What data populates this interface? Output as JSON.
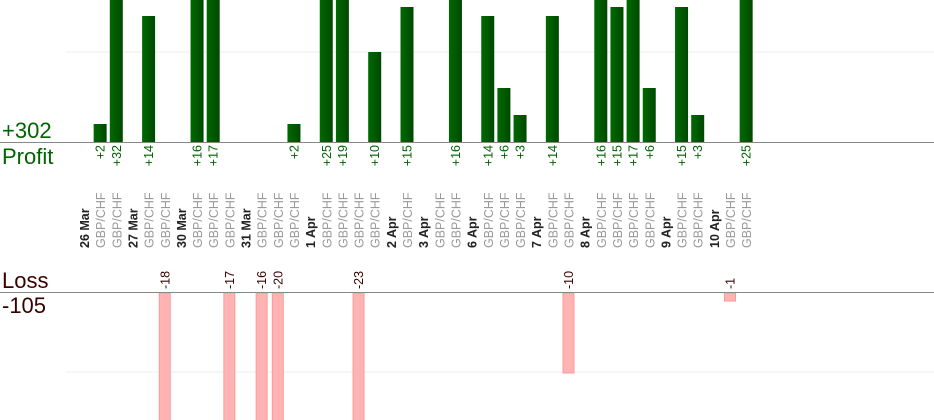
{
  "chart_data": {
    "type": "bar",
    "profit_label": "Profit",
    "profit_total": "+302",
    "loss_label": "Loss",
    "loss_total": "-105",
    "instrument": "GBP/CHF",
    "colors": {
      "profit": "#006400",
      "loss": "#ffb3b3",
      "profit_text": "#006400",
      "loss_text": "#3a0000"
    },
    "groups": [
      {
        "date": "26 Mar",
        "trades": [
          2,
          32
        ]
      },
      {
        "date": "27 Mar",
        "trades": [
          14,
          -18
        ]
      },
      {
        "date": "30 Mar",
        "trades": [
          16,
          17,
          -17
        ]
      },
      {
        "date": "31 Mar",
        "trades": [
          -16,
          -20,
          2
        ]
      },
      {
        "date": "1 Apr",
        "trades": [
          25,
          19,
          -23,
          10
        ]
      },
      {
        "date": "2 Apr",
        "trades": [
          15
        ]
      },
      {
        "date": "3 Apr",
        "trades": [
          0,
          16
        ]
      },
      {
        "date": "6 Apr",
        "trades": [
          14,
          6,
          3
        ]
      },
      {
        "date": "7 Apr",
        "trades": [
          14,
          -10
        ]
      },
      {
        "date": "8 Apr",
        "trades": [
          16,
          15,
          17,
          6
        ]
      },
      {
        "date": "9 Apr",
        "trades": [
          15,
          3
        ]
      },
      {
        "date": "10 Apr",
        "trades": [
          -1,
          25
        ]
      }
    ]
  }
}
